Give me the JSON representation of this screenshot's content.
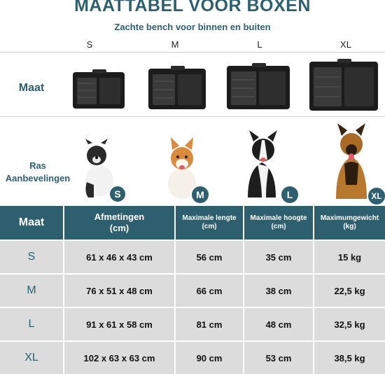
{
  "header": {
    "title": "MAATTABEL VOOR BOXEN",
    "subtitle": "Zachte bench voor binnen en buiten"
  },
  "sizes": [
    "S",
    "M",
    "L",
    "XL"
  ],
  "rows": {
    "maat_label": "Maat",
    "ras_label_line1": "Ras",
    "ras_label_line2": "Aanbevelingen"
  },
  "colors": {
    "accent": "#2d5f6e",
    "cell": "#dcdcdc",
    "crate": "#1c1c1c"
  },
  "table": {
    "headers": {
      "maat": "Maat",
      "afmetingen_1": "Afmetingen",
      "afmetingen_2": "(cm)",
      "lengte_1": "Maximale lengte",
      "lengte_2": "(cm)",
      "hoogte_1": "Maximale hoogte",
      "hoogte_2": "(cm)",
      "gewicht_1": "Maximumgewicht",
      "gewicht_2": "(kg)"
    },
    "rows": [
      {
        "maat": "S",
        "afmetingen": "61 x 46 x 43 cm",
        "lengte": "56 cm",
        "hoogte": "35 cm",
        "gewicht": "15 kg"
      },
      {
        "maat": "M",
        "afmetingen": "76 x 51 x 48 cm",
        "lengte": "66 cm",
        "hoogte": "38 cm",
        "gewicht": "22,5 kg"
      },
      {
        "maat": "L",
        "afmetingen": "91 x 61 x 58 cm",
        "lengte": "81 cm",
        "hoogte": "48 cm",
        "gewicht": "32,5 kg"
      },
      {
        "maat": "XL",
        "afmetingen": "102 x 63 x 63 cm",
        "lengte": "90 cm",
        "hoogte": "53 cm",
        "gewicht": "38,5 kg"
      }
    ]
  }
}
